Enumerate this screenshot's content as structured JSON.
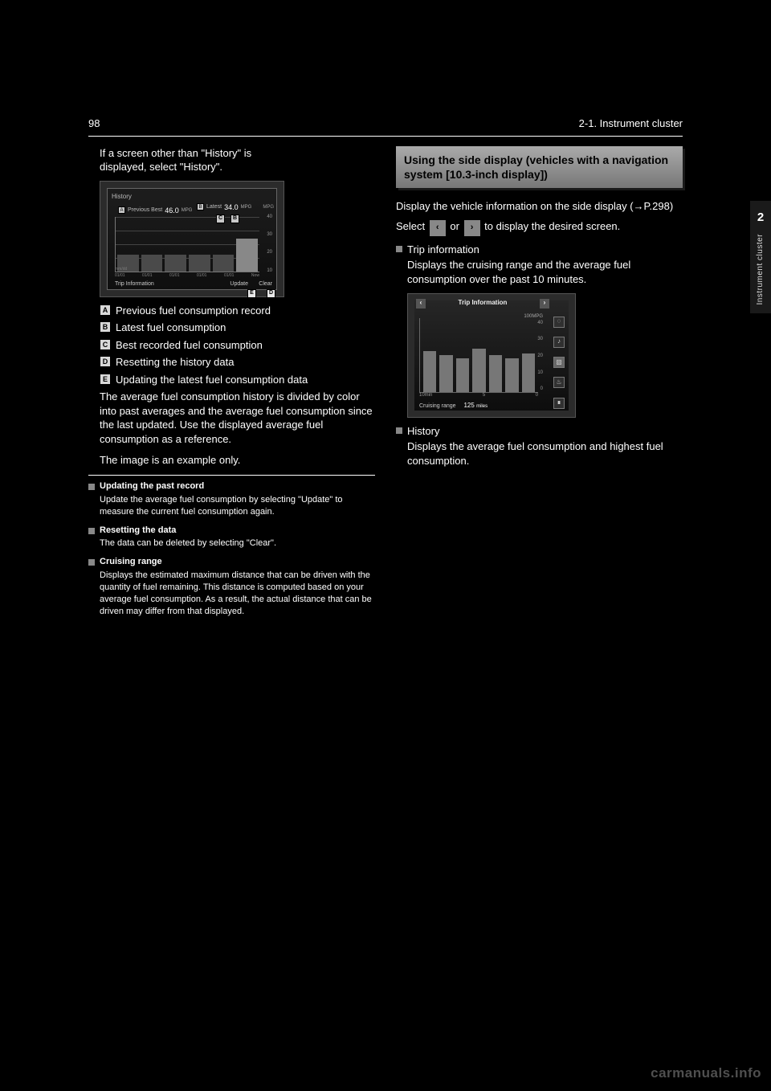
{
  "page_number": "98",
  "header_label": "2-1. Instrument cluster",
  "side_tab": {
    "number": "2",
    "label": "Instrument cluster"
  },
  "watermark": "carmanuals.info",
  "left": {
    "intro_lines": [
      "If a screen other than \"History\" is",
      "displayed, select \"History\"."
    ],
    "history_screen": {
      "title": "History",
      "previous_best_label": "Previous Best",
      "previous_best_value": "46.0",
      "previous_best_unit": "MPG",
      "latest_label": "Latest",
      "latest_value": "34.0",
      "latest_unit": "MPG",
      "y_unit": "MPG",
      "y_ticks": [
        "40",
        "30",
        "20",
        "10"
      ],
      "bar_heights_pct": [
        30,
        30,
        30,
        30,
        30,
        60
      ],
      "current_bar_height_pct": 60,
      "x_labels": [
        "01/01",
        "01/01",
        "01/01",
        "01/01",
        "01/01",
        "Now"
      ],
      "mmdd_hint": "mm/dd",
      "trip_label": "Trip Information",
      "update_label": "Update",
      "clear_label": "Clear",
      "callouts": {
        "A": "A",
        "B": "B",
        "C": "C",
        "B2": "B",
        "E": "E",
        "D": "D"
      },
      "colors": {
        "bg": "#2b2b2b",
        "inner_bg_top": "#1d1d1d",
        "inner_bg_bot": "#0f0f0f",
        "border": "#555",
        "grid": "#444",
        "bar": "#4a4a4a",
        "bar_current": "#888",
        "text": "#ffffff",
        "text_dim": "#bbbbbb"
      }
    },
    "legend": [
      {
        "k": "A",
        "t": "Previous fuel consumption record"
      },
      {
        "k": "B",
        "t": "Latest fuel consumption"
      },
      {
        "k": "C",
        "t": "Best recorded fuel consumption"
      },
      {
        "k": "D",
        "t": "Resetting the history data"
      },
      {
        "k": "E",
        "t": "Updating the latest fuel consumption data"
      }
    ],
    "paras": [
      "The average fuel consumption history is divided by color into past averages and the average fuel consumption since the last updated. Use the displayed average fuel consumption as a reference.",
      "The image is an example only."
    ],
    "notes": [
      {
        "h": "Updating the past record",
        "b": "Update the average fuel consumption by selecting \"Update\" to measure the current fuel consumption again."
      },
      {
        "h": "Resetting the data",
        "b": "The data can be deleted by selecting \"Clear\"."
      },
      {
        "h": "Cruising range",
        "b": "Displays the estimated maximum distance that can be driven with the quantity of fuel remaining. This distance is computed based on your average fuel consumption. As a result, the actual distance that can be driven may differ from that displayed."
      }
    ]
  },
  "right": {
    "heading": "Using the side display (vehicles with a navigation system [10.3-inch display])",
    "intro1": "Display the vehicle information on the side display (→P.298)",
    "switch_text_parts": [
      "Select ",
      " or ",
      " to display the desired screen."
    ],
    "nav_left": "‹",
    "nav_right": "›",
    "items": [
      {
        "title": "Trip information",
        "body": "Displays the cruising range and the average fuel consumption over the past 10 minutes.",
        "screen": {
          "header_label": "Trip Information",
          "y_unit": "100MPG",
          "y_ticks": [
            "40",
            "30",
            "20",
            "10",
            "0"
          ],
          "bar_heights_pct": [
            55,
            50,
            45,
            58,
            50,
            45,
            52
          ],
          "x_labels": [
            "10min",
            "5",
            "0"
          ],
          "footer_label": "Cruising range",
          "footer_value": "125",
          "footer_unit": "miles",
          "icons": [
            "◌",
            "♪",
            "▧",
            "♨",
            "∎"
          ],
          "active_icon_index": 2,
          "colors": {
            "bg": "#2b2b2b",
            "bar": "#777",
            "border": "#555"
          }
        }
      },
      {
        "title": "History",
        "body": "Displays the average fuel consumption and highest fuel consumption."
      }
    ]
  }
}
